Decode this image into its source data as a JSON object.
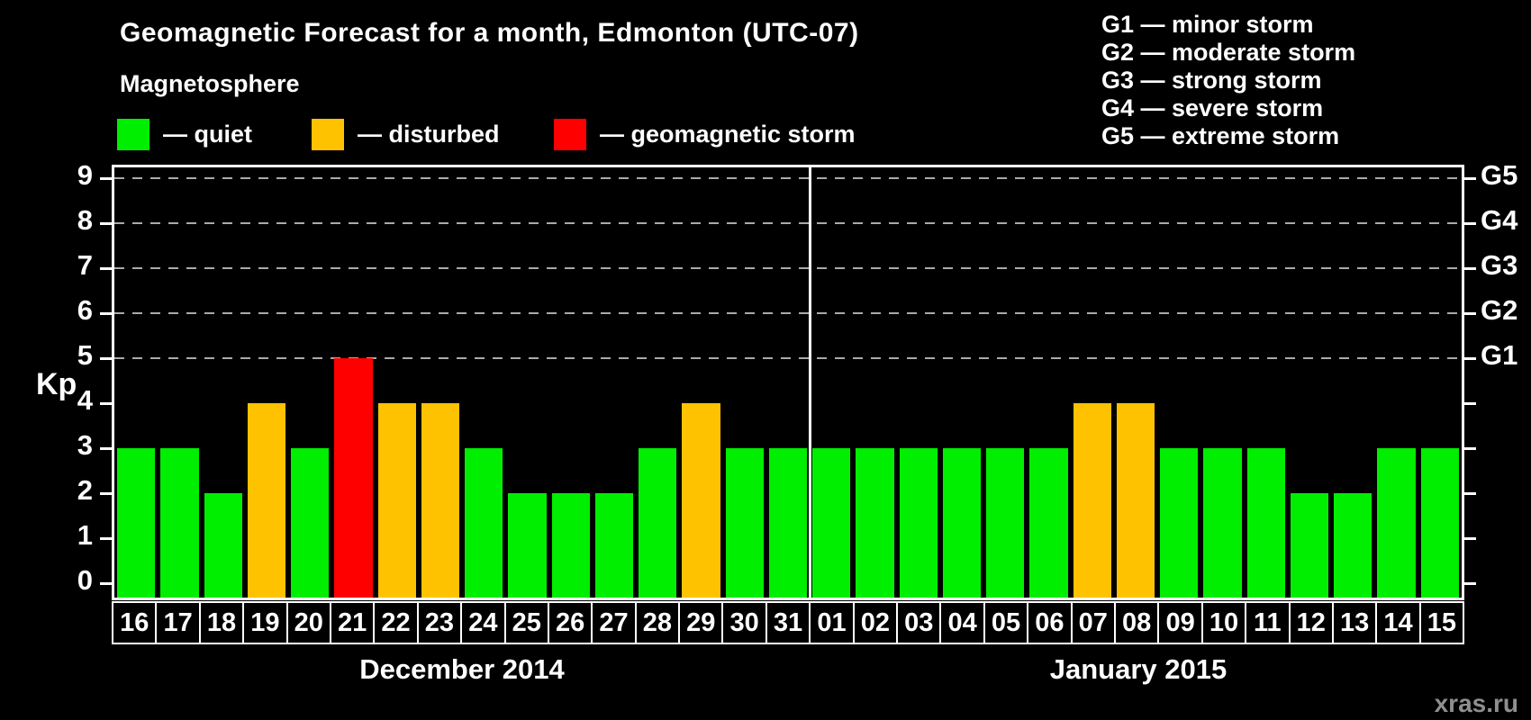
{
  "title": "Geomagnetic Forecast for a month, Edmonton (UTC-07)",
  "subtitle": "Magnetosphere",
  "legend": {
    "items": [
      {
        "state": "quiet",
        "label": "— quiet"
      },
      {
        "state": "disturbed",
        "label": "— disturbed"
      },
      {
        "state": "storm",
        "label": "— geomagnetic storm"
      }
    ]
  },
  "g_scale_legend": {
    "lines": [
      "G1 — minor storm",
      "G2 — moderate storm",
      "G3 — strong storm",
      "G4 — severe storm",
      "G5 — extreme storm"
    ]
  },
  "watermark": "xras.ru",
  "colors": {
    "quiet": "#00ee00",
    "disturbed": "#ffc200",
    "storm": "#ff0000",
    "background": "#000000",
    "axis": "#ffffff",
    "gridline": "#aaaaaa",
    "watermark": "#8f8f8f"
  },
  "chart_data": {
    "type": "bar",
    "title": "Geomagnetic Forecast for a month, Edmonton (UTC-07)",
    "ylabel": "Kp",
    "ylim": [
      0,
      9
    ],
    "yticks": [
      0,
      1,
      2,
      3,
      4,
      5,
      6,
      7,
      8,
      9
    ],
    "gridlines_at_kp": [
      5,
      6,
      7,
      8,
      9
    ],
    "grid_style": "dashed",
    "right_axis_labels": [
      {
        "label": "G1",
        "kp": 5
      },
      {
        "label": "G2",
        "kp": 6
      },
      {
        "label": "G3",
        "kp": 7
      },
      {
        "label": "G4",
        "kp": 8
      },
      {
        "label": "G5",
        "kp": 9
      }
    ],
    "months": [
      {
        "label": "December 2014",
        "days": [
          {
            "day": "16",
            "kp": 3,
            "state": "quiet"
          },
          {
            "day": "17",
            "kp": 3,
            "state": "quiet"
          },
          {
            "day": "18",
            "kp": 2,
            "state": "quiet"
          },
          {
            "day": "19",
            "kp": 4,
            "state": "disturbed"
          },
          {
            "day": "20",
            "kp": 3,
            "state": "quiet"
          },
          {
            "day": "21",
            "kp": 5,
            "state": "storm"
          },
          {
            "day": "22",
            "kp": 4,
            "state": "disturbed"
          },
          {
            "day": "23",
            "kp": 4,
            "state": "disturbed"
          },
          {
            "day": "24",
            "kp": 3,
            "state": "quiet"
          },
          {
            "day": "25",
            "kp": 2,
            "state": "quiet"
          },
          {
            "day": "26",
            "kp": 2,
            "state": "quiet"
          },
          {
            "day": "27",
            "kp": 2,
            "state": "quiet"
          },
          {
            "day": "28",
            "kp": 3,
            "state": "quiet"
          },
          {
            "day": "29",
            "kp": 4,
            "state": "disturbed"
          },
          {
            "day": "30",
            "kp": 3,
            "state": "quiet"
          },
          {
            "day": "31",
            "kp": 3,
            "state": "quiet"
          }
        ]
      },
      {
        "label": "January 2015",
        "days": [
          {
            "day": "01",
            "kp": 3,
            "state": "quiet"
          },
          {
            "day": "02",
            "kp": 3,
            "state": "quiet"
          },
          {
            "day": "03",
            "kp": 3,
            "state": "quiet"
          },
          {
            "day": "04",
            "kp": 3,
            "state": "quiet"
          },
          {
            "day": "05",
            "kp": 3,
            "state": "quiet"
          },
          {
            "day": "06",
            "kp": 3,
            "state": "quiet"
          },
          {
            "day": "07",
            "kp": 4,
            "state": "disturbed"
          },
          {
            "day": "08",
            "kp": 4,
            "state": "disturbed"
          },
          {
            "day": "09",
            "kp": 3,
            "state": "quiet"
          },
          {
            "day": "10",
            "kp": 3,
            "state": "quiet"
          },
          {
            "day": "11",
            "kp": 3,
            "state": "quiet"
          },
          {
            "day": "12",
            "kp": 2,
            "state": "quiet"
          },
          {
            "day": "13",
            "kp": 2,
            "state": "quiet"
          },
          {
            "day": "14",
            "kp": 3,
            "state": "quiet"
          },
          {
            "day": "15",
            "kp": 3,
            "state": "quiet"
          }
        ]
      }
    ]
  }
}
